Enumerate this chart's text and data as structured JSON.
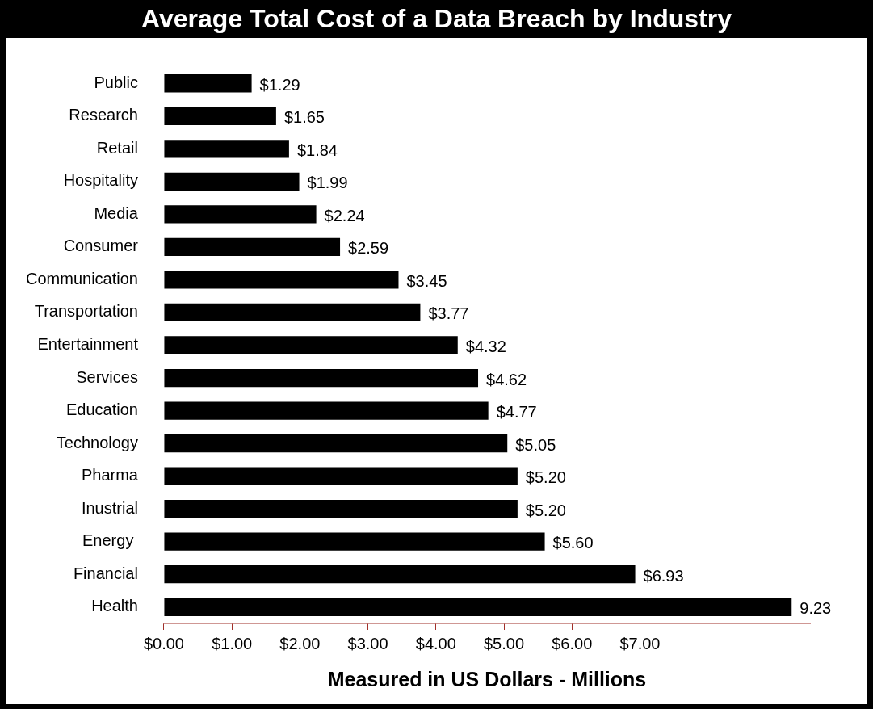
{
  "chart_data": {
    "type": "bar",
    "orientation": "horizontal",
    "title": "Average Total Cost of a Data Breach by Industry",
    "xlabel": "Measured in US Dollars - Millions",
    "categories": [
      "Public",
      "Research",
      "Retail",
      "Hospitality",
      "Media",
      "Consumer",
      "Communication",
      "Transportation",
      "Entertainment",
      "Services",
      "Education",
      "Technology",
      "Pharma",
      "Inustrial",
      "Energy ",
      "Financial",
      "Health"
    ],
    "values": [
      1.29,
      1.65,
      1.84,
      1.99,
      2.24,
      2.59,
      3.45,
      3.77,
      4.32,
      4.62,
      4.77,
      5.05,
      5.2,
      5.2,
      5.6,
      6.93,
      9.23
    ],
    "value_labels": [
      "$1.29",
      "$1.65",
      "$1.84",
      "$1.99",
      "$2.24",
      "$2.59",
      "$3.45",
      "$3.77",
      "$4.32",
      "$4.62",
      "$4.77",
      "$5.05",
      "$5.20",
      "$5.20",
      "$5.60",
      "$6.93",
      "9.23"
    ],
    "color": "#000000",
    "xlim": [
      0,
      9.5
    ],
    "xticks": [
      {
        "value": 0,
        "label": "$0.00"
      },
      {
        "value": 1,
        "label": "$1.00"
      },
      {
        "value": 2,
        "label": "$2.00"
      },
      {
        "value": 3,
        "label": "$3.00"
      },
      {
        "value": 4,
        "label": "$4.00"
      },
      {
        "value": 5,
        "label": "$5.00"
      },
      {
        "value": 6,
        "label": "$6.00"
      },
      {
        "value": 7,
        "label": "$7.00"
      }
    ],
    "grid": false,
    "legend": false
  }
}
